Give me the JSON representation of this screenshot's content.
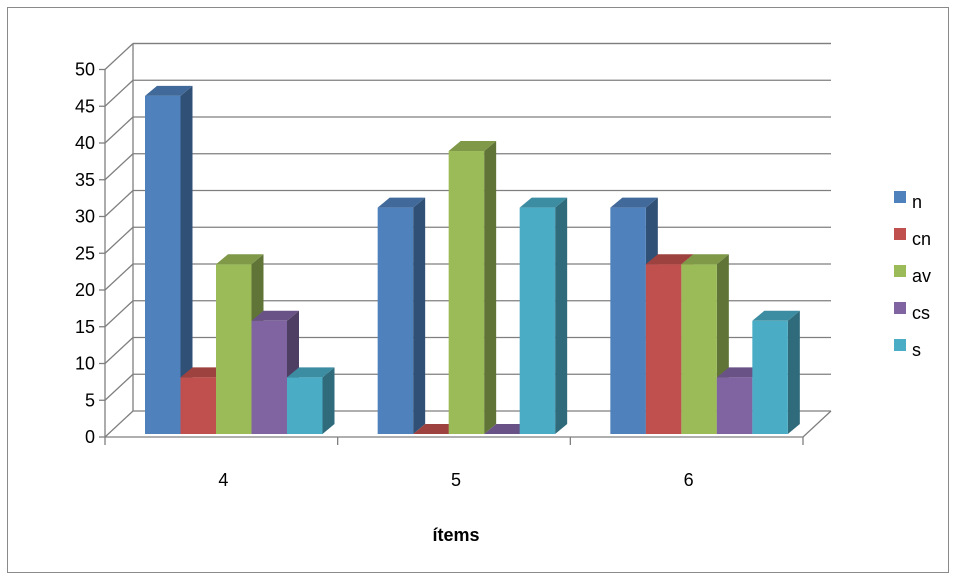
{
  "chart_data": {
    "type": "bar",
    "title": "",
    "xlabel": "ítems",
    "ylabel": "",
    "ylim": [
      0,
      50
    ],
    "y_ticks": [
      "0",
      "5",
      "10",
      "15",
      "20",
      "25",
      "30",
      "35",
      "40",
      "45",
      "50"
    ],
    "y_tick_values": [
      0,
      5,
      10,
      15,
      20,
      25,
      30,
      35,
      40,
      45,
      50
    ],
    "categories": [
      "4",
      "5",
      "6"
    ],
    "series": [
      {
        "name": "n",
        "color": "#4F81BD",
        "values": [
          46,
          30.8,
          30.8
        ]
      },
      {
        "name": "cn",
        "color": "#C0504D",
        "values": [
          7.7,
          0,
          23.1
        ]
      },
      {
        "name": "av",
        "color": "#9BBB59",
        "values": [
          23.1,
          38.5,
          23.1
        ]
      },
      {
        "name": "cs",
        "color": "#8064A2",
        "values": [
          15.4,
          0,
          7.7
        ]
      },
      {
        "name": "s",
        "color": "#4BACC6",
        "values": [
          7.7,
          30.8,
          15.4
        ]
      }
    ],
    "grid": true,
    "legend": "right",
    "style": "3d-clustered-column"
  }
}
